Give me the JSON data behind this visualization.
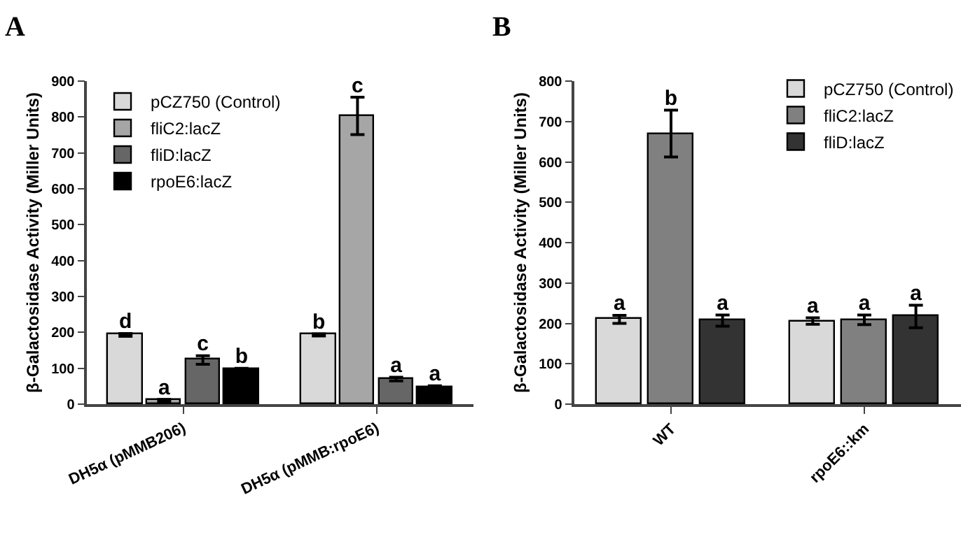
{
  "chart_data": [
    {
      "type": "bar",
      "title": "A",
      "ylabel": "β-Galactosidase Activity (Miller Units)",
      "categories": [
        "DH5α (pMMB206)",
        "DH5α (pMMB:rpoE6)"
      ],
      "ylim": [
        0,
        900
      ],
      "yticks": [
        0,
        100,
        200,
        300,
        400,
        500,
        600,
        700,
        800,
        900
      ],
      "grid": false,
      "legend": "top left",
      "series": [
        {
          "name": "pCZ750 (Control)",
          "color": "#d9d9d9",
          "values": [
            193,
            193
          ],
          "errors": [
            4,
            3
          ],
          "value_labels": [
            "d",
            "b"
          ]
        },
        {
          "name": "fliC2:lacZ",
          "color": "#a6a6a6",
          "values": [
            10,
            803
          ],
          "errors": [
            3,
            52
          ],
          "value_labels": [
            "a",
            "c"
          ]
        },
        {
          "name": "fliD:lacZ",
          "color": "#666666",
          "values": [
            123,
            70
          ],
          "errors": [
            12,
            5
          ],
          "value_labels": [
            "c",
            "a"
          ]
        },
        {
          "name": "rpoE6:lacZ",
          "color": "#000000",
          "values": [
            97,
            48
          ],
          "errors": [
            3,
            3
          ],
          "value_labels": [
            "b",
            "a"
          ]
        }
      ]
    },
    {
      "type": "bar",
      "title": "B",
      "ylabel": "β-Galactosidase Activity (Miller Units)",
      "categories": [
        "WT",
        "rpoE6::km"
      ],
      "ylim": [
        0,
        800
      ],
      "yticks": [
        0,
        100,
        200,
        300,
        400,
        500,
        600,
        700,
        800
      ],
      "grid": false,
      "legend": "top right",
      "series": [
        {
          "name": "pCZ750 (Control)",
          "color": "#d9d9d9",
          "values": [
            210,
            206
          ],
          "errors": [
            10,
            8
          ],
          "value_labels": [
            "a",
            "a"
          ]
        },
        {
          "name": "fliC2:lacZ",
          "color": "#808080",
          "values": [
            670,
            209
          ],
          "errors": [
            58,
            12
          ],
          "value_labels": [
            "b",
            "a"
          ]
        },
        {
          "name": "fliD:lacZ",
          "color": "#333333",
          "values": [
            207,
            217
          ],
          "errors": [
            14,
            28
          ],
          "value_labels": [
            "a",
            "a"
          ]
        }
      ]
    }
  ]
}
